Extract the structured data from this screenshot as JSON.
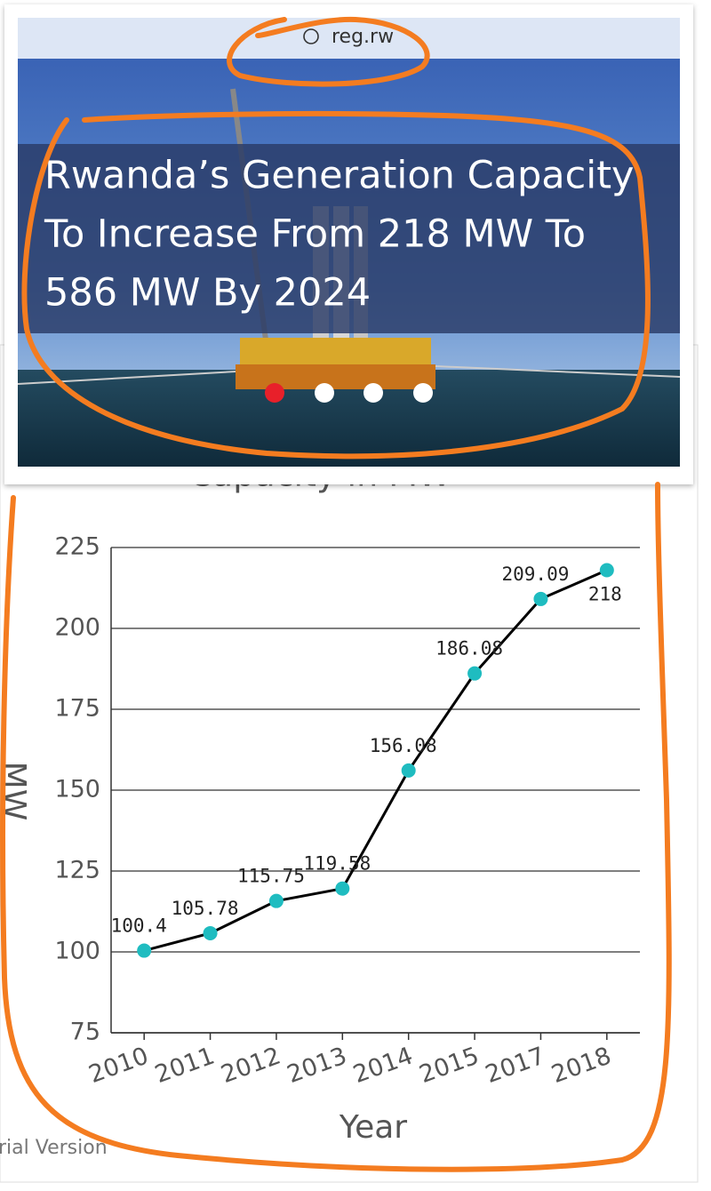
{
  "header": {
    "url": "reg.rw",
    "headline": [
      "Rwanda’s Generation Capacity",
      "To Increase From 218 MW To",
      "586 MW By 2024"
    ]
  },
  "chart_data": {
    "type": "line",
    "title": "Capacity in MW",
    "categories": [
      "2010",
      "2011",
      "2012",
      "2013",
      "2014",
      "2015",
      "2017",
      "2018"
    ],
    "series": [
      {
        "name": "Capacity",
        "color": "#1fbcc0",
        "values": [
          100.4,
          105.78,
          115.75,
          119.58,
          156.08,
          186.08,
          209.09,
          218
        ]
      }
    ],
    "ylim": [
      75,
      225
    ],
    "yticks": [
      75,
      100,
      125,
      150,
      175,
      200,
      225
    ],
    "grid": true,
    "ylabel": "MW",
    "xlabel": "Year"
  },
  "footer": {
    "text": "rial Version"
  }
}
